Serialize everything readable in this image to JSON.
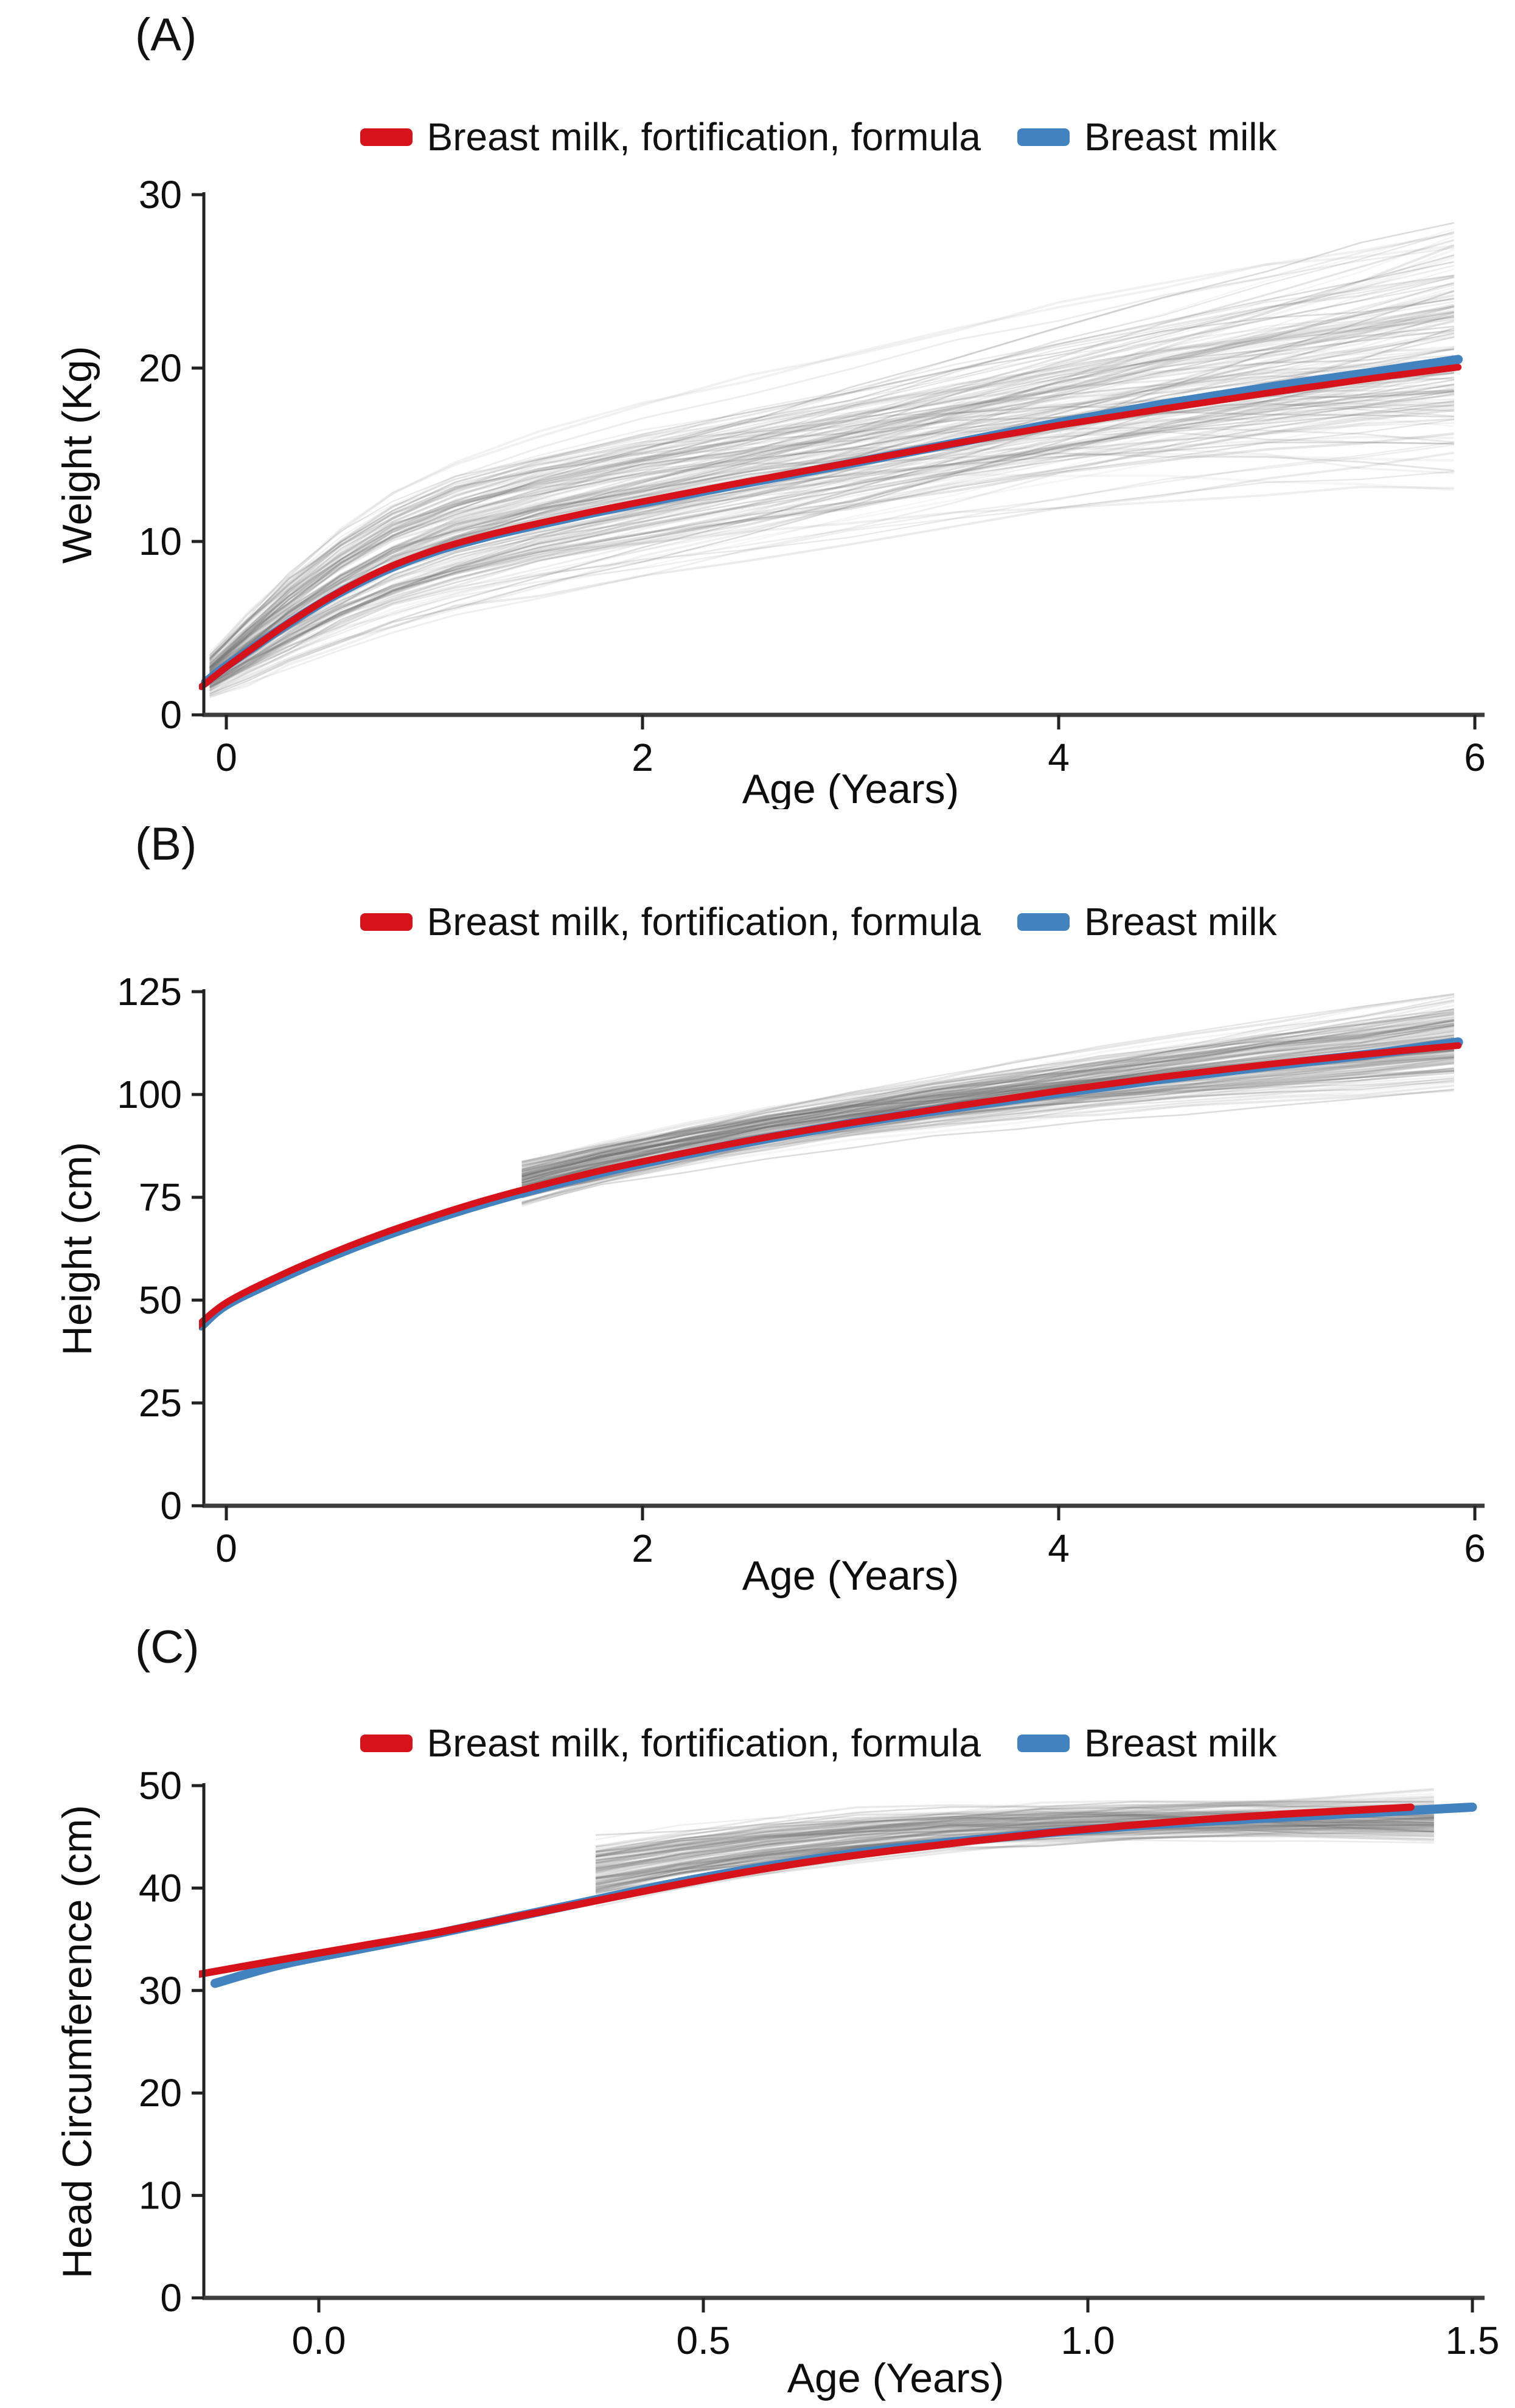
{
  "figure_title": "",
  "chart_data": [
    {
      "type": "line",
      "panel_label": "(A)",
      "xlabel": "Age (Years)",
      "ylabel": "Weight (Kg)",
      "xlim": [
        -0.12,
        6.05
      ],
      "ylim": [
        0,
        30
      ],
      "x_ticks": [
        "0",
        "2",
        "4",
        "6"
      ],
      "x_tick_values": [
        0,
        2,
        4,
        6
      ],
      "y_ticks": [
        "0",
        "10",
        "20",
        "30"
      ],
      "y_tick_values": [
        0,
        10,
        20,
        30
      ],
      "grid": false,
      "legend_position": "top",
      "series": [
        {
          "name": "Breast milk, fortification, formula",
          "color": "#d6121a",
          "width": 11,
          "points": [
            [
              -0.12,
              1.62
            ],
            [
              0,
              2.75
            ],
            [
              0.15,
              4.05
            ],
            [
              0.3,
              5.3
            ],
            [
              0.5,
              6.8
            ],
            [
              0.75,
              8.35
            ],
            [
              1,
              9.5
            ],
            [
              1.25,
              10.35
            ],
            [
              1.5,
              11.05
            ],
            [
              1.75,
              11.7
            ],
            [
              2,
              12.3
            ],
            [
              2.5,
              13.45
            ],
            [
              3,
              14.55
            ],
            [
              3.5,
              15.65
            ],
            [
              4,
              16.7
            ],
            [
              4.5,
              17.65
            ],
            [
              5,
              18.55
            ],
            [
              5.5,
              19.4
            ],
            [
              5.92,
              20.05
            ]
          ]
        },
        {
          "name": "Breast milk",
          "color": "#4283bf",
          "width": 15,
          "points": [
            [
              -0.1,
              1.88
            ],
            [
              0,
              2.82
            ],
            [
              0.15,
              4.05
            ],
            [
              0.3,
              5.27
            ],
            [
              0.5,
              6.75
            ],
            [
              0.75,
              8.27
            ],
            [
              1,
              9.42
            ],
            [
              1.25,
              10.27
            ],
            [
              1.5,
              10.97
            ],
            [
              1.75,
              11.62
            ],
            [
              2,
              12.22
            ],
            [
              2.5,
              13.37
            ],
            [
              3,
              14.5
            ],
            [
              3.5,
              15.67
            ],
            [
              4,
              16.85
            ],
            [
              4.5,
              17.92
            ],
            [
              5,
              18.88
            ],
            [
              5.5,
              19.75
            ],
            [
              5.92,
              20.5
            ]
          ]
        }
      ],
      "background_lines": {
        "description": "individual infant weight trajectories",
        "color": "#6e6e6e",
        "count": 155,
        "x_knots": [
          -0.08,
          0.1,
          0.3,
          0.55,
          0.8,
          1.1,
          1.5,
          2,
          2.5,
          3,
          3.5,
          4,
          4.5,
          5,
          5.45,
          5.9
        ],
        "start_mult": 1.05,
        "start_sd": 0.26,
        "end_mult": 1.0,
        "end_sd": 0.17,
        "offset": 0.1,
        "jitter": 0.12
      }
    },
    {
      "type": "line",
      "panel_label": "(B)",
      "xlabel": "Age (Years)",
      "ylabel": "Height (cm)",
      "xlim": [
        -0.12,
        6.05
      ],
      "ylim": [
        0,
        125
      ],
      "x_ticks": [
        "0",
        "2",
        "4",
        "6"
      ],
      "x_tick_values": [
        0,
        2,
        4,
        6
      ],
      "y_ticks": [
        "0",
        "25",
        "50",
        "75",
        "100",
        "125"
      ],
      "y_tick_values": [
        0,
        25,
        50,
        75,
        100,
        125
      ],
      "grid": false,
      "legend_position": "top",
      "series": [
        {
          "name": "Breast milk, fortification, formula",
          "color": "#d6121a",
          "width": 11,
          "points": [
            [
              -0.15,
              43.2
            ],
            [
              0,
              49.4
            ],
            [
              0.25,
              55.8
            ],
            [
              0.5,
              61.3
            ],
            [
              0.75,
              66.2
            ],
            [
              1,
              70.5
            ],
            [
              1.25,
              74.4
            ],
            [
              1.5,
              77.8
            ],
            [
              1.75,
              80.9
            ],
            [
              2,
              83.7
            ],
            [
              2.5,
              88.7
            ],
            [
              3,
              93.1
            ],
            [
              3.5,
              97.1
            ],
            [
              4,
              100.9
            ],
            [
              4.5,
              104.3
            ],
            [
              5,
              107.3
            ],
            [
              5.5,
              109.9
            ],
            [
              5.92,
              111.9
            ]
          ]
        },
        {
          "name": "Breast milk",
          "color": "#4283bf",
          "width": 16,
          "points": [
            [
              -0.12,
              43.8
            ],
            [
              0,
              48.9
            ],
            [
              0.25,
              55.1
            ],
            [
              0.5,
              60.6
            ],
            [
              0.75,
              65.5
            ],
            [
              1,
              69.8
            ],
            [
              1.25,
              73.7
            ],
            [
              1.5,
              77.2
            ],
            [
              1.75,
              80.4
            ],
            [
              2,
              83.3
            ],
            [
              2.5,
              88.4
            ],
            [
              3,
              92.9
            ],
            [
              3.5,
              96.8
            ],
            [
              4,
              100.4
            ],
            [
              4.5,
              103.8
            ],
            [
              5,
              106.9
            ],
            [
              5.5,
              109.8
            ],
            [
              5.92,
              112.7
            ]
          ]
        }
      ],
      "background_lines": {
        "description": "individual child height trajectories (measured from ~1.4 years)",
        "color": "#6e6e6e",
        "count": 145,
        "x_knots": [
          1.42,
          1.8,
          2.2,
          2.6,
          3,
          3.4,
          3.8,
          4.2,
          4.6,
          5,
          5.45,
          5.9
        ],
        "start_mult": 1.03,
        "start_sd": 0.03,
        "end_mult": 1.0,
        "end_sd": 0.05,
        "offset": 0.0,
        "jitter": 0.35
      }
    },
    {
      "type": "line",
      "panel_label": "(C)",
      "xlabel": "Age (Years)",
      "ylabel": "Head Circumference (cm)",
      "xlim": [
        -0.155,
        1.51
      ],
      "ylim": [
        0,
        50
      ],
      "x_ticks": [
        "0.0",
        "0.5",
        "1.0",
        "1.5"
      ],
      "x_tick_values": [
        0,
        0.5,
        1.0,
        1.5
      ],
      "y_ticks": [
        "0",
        "10",
        "20",
        "30",
        "40",
        "50"
      ],
      "y_tick_values": [
        0,
        10,
        20,
        30,
        40,
        50
      ],
      "grid": false,
      "legend_position": "top",
      "series": [
        {
          "name": "Breast milk, fortification, formula",
          "color": "#d6121a",
          "width": 12,
          "points": [
            [
              -0.155,
              31.6
            ],
            [
              -0.05,
              33.0
            ],
            [
              0.05,
              34.3
            ],
            [
              0.15,
              35.6
            ],
            [
              0.25,
              37.1
            ],
            [
              0.35,
              38.6
            ],
            [
              0.45,
              40.1
            ],
            [
              0.55,
              41.5
            ],
            [
              0.65,
              42.7
            ],
            [
              0.75,
              43.7
            ],
            [
              0.85,
              44.6
            ],
            [
              0.95,
              45.4
            ],
            [
              1.05,
              46.1
            ],
            [
              1.15,
              46.7
            ],
            [
              1.25,
              47.2
            ],
            [
              1.35,
              47.6
            ],
            [
              1.42,
              47.9
            ]
          ]
        },
        {
          "name": "Breast milk",
          "color": "#4283bf",
          "width": 15,
          "points": [
            [
              -0.135,
              30.7
            ],
            [
              -0.05,
              32.5
            ],
            [
              0.05,
              34.0
            ],
            [
              0.15,
              35.5
            ],
            [
              0.25,
              37.1
            ],
            [
              0.35,
              38.7
            ],
            [
              0.45,
              40.3
            ],
            [
              0.55,
              41.7
            ],
            [
              0.65,
              42.9
            ],
            [
              0.75,
              43.9
            ],
            [
              0.85,
              44.7
            ],
            [
              0.95,
              45.4
            ],
            [
              1.05,
              46.0
            ],
            [
              1.15,
              46.5
            ],
            [
              1.25,
              46.9
            ],
            [
              1.35,
              47.3
            ],
            [
              1.5,
              47.9
            ]
          ]
        }
      ],
      "background_lines": {
        "description": "individual infant head-circumference trajectories (measured from ~0.35 years)",
        "color": "#6e6e6e",
        "count": 130,
        "x_knots": [
          0.36,
          0.47,
          0.58,
          0.7,
          0.82,
          0.94,
          1.06,
          1.18,
          1.3,
          1.45
        ],
        "start_mult": 1.06,
        "start_sd": 0.04,
        "end_mult": 0.985,
        "end_sd": 0.022,
        "offset": 0.0,
        "jitter": 0.18
      }
    }
  ]
}
